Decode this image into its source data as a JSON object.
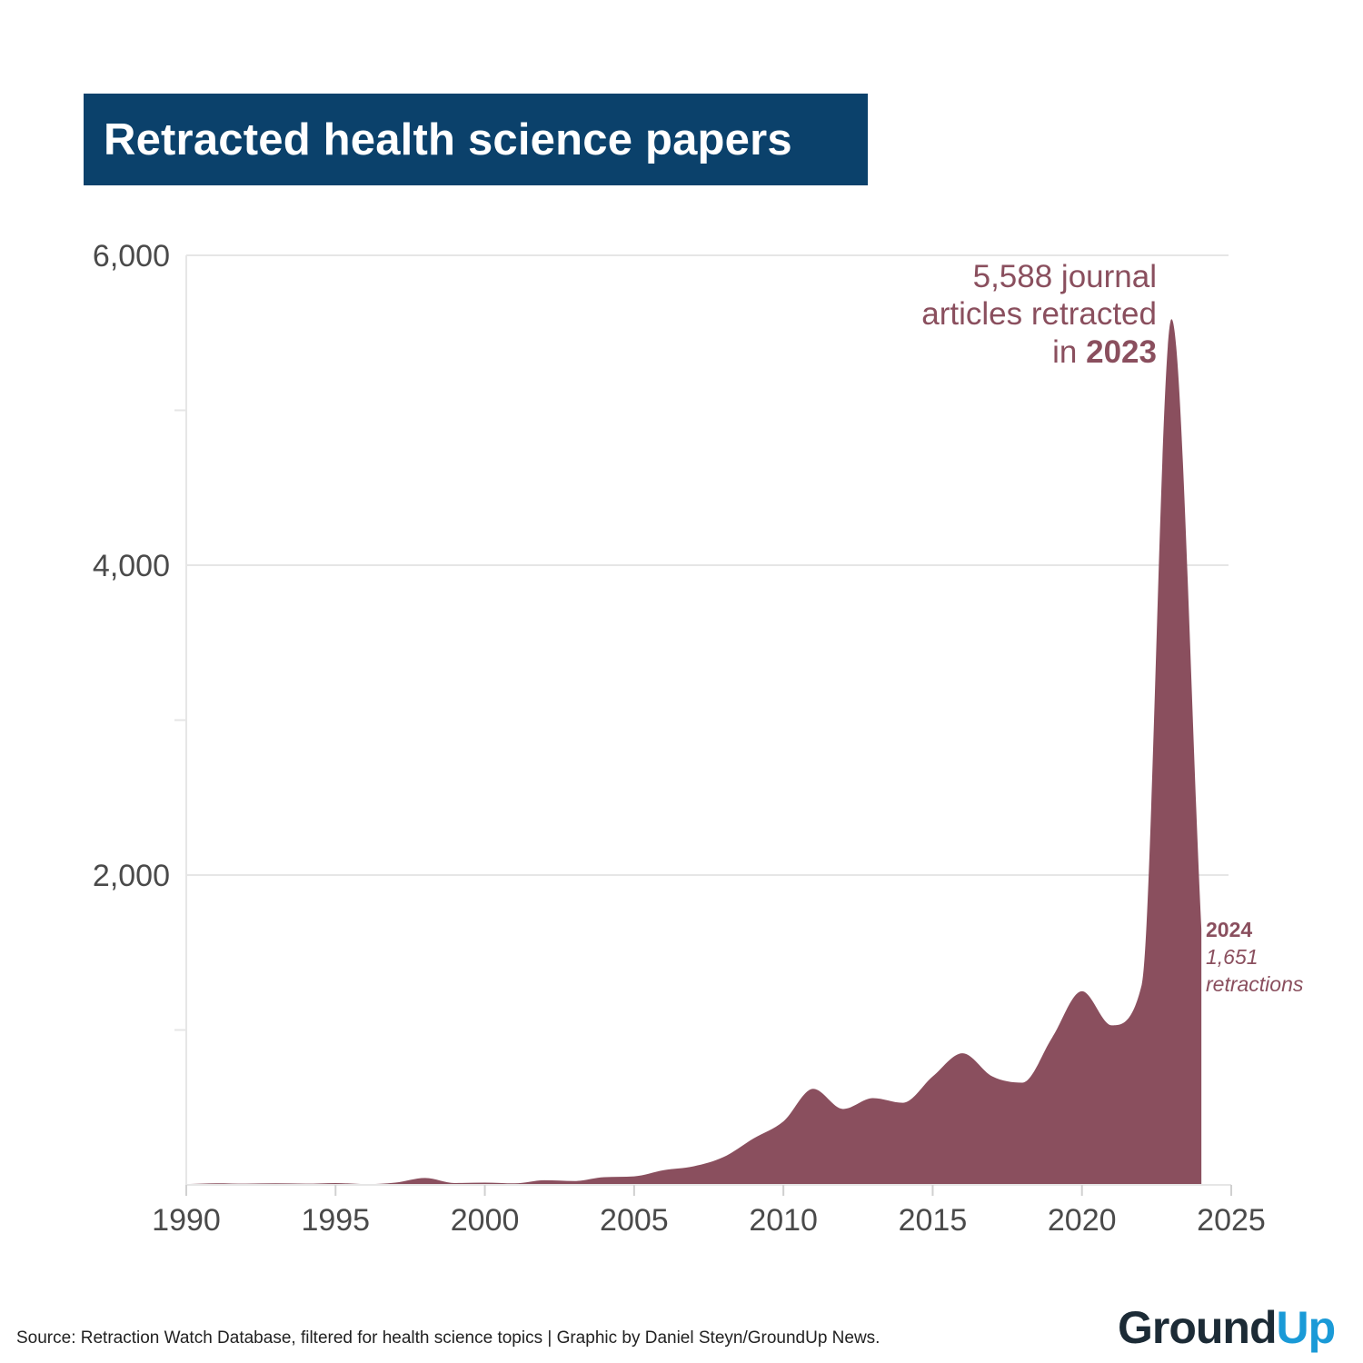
{
  "title": "Retracted health science papers",
  "source": "Source: Retraction Watch Database, filtered for health science topics | Graphic by Daniel Steyn/GroundUp News.",
  "logo": {
    "part1": "Ground",
    "part2": "Up"
  },
  "colors": {
    "area": "#8a4f5e",
    "title_bg": "#0b416b",
    "logo_up": "#1a9ad7",
    "grid": "#e6e6e6"
  },
  "annotations": {
    "peak": {
      "line1": "5,588 journal",
      "line2": "articles retracted",
      "line3_prefix": "in ",
      "line3_bold": "2023"
    },
    "end": {
      "year": "2024",
      "value": "1,651",
      "label": "retractions"
    }
  },
  "chart_data": {
    "type": "area",
    "x": [
      1990,
      1991,
      1992,
      1993,
      1994,
      1995,
      1996,
      1997,
      1998,
      1999,
      2000,
      2001,
      2002,
      2003,
      2004,
      2005,
      2006,
      2007,
      2008,
      2009,
      2010,
      2011,
      2012,
      2013,
      2014,
      2015,
      2016,
      2017,
      2018,
      2019,
      2020,
      2021,
      2022,
      2023,
      2024
    ],
    "values": [
      5,
      10,
      8,
      10,
      8,
      12,
      5,
      15,
      45,
      12,
      15,
      10,
      30,
      25,
      50,
      55,
      95,
      120,
      180,
      300,
      410,
      620,
      490,
      560,
      530,
      700,
      850,
      700,
      660,
      950,
      1250,
      1030,
      1290,
      5588,
      1651
    ],
    "xlim": [
      1990,
      2025
    ],
    "ylim": [
      0,
      6000
    ],
    "x_ticks": [
      "1990",
      "1995",
      "2000",
      "2005",
      "2010",
      "2015",
      "2020",
      "2025"
    ],
    "y_ticks": [
      "2,000",
      "4,000",
      "6,000"
    ],
    "grid": true
  }
}
